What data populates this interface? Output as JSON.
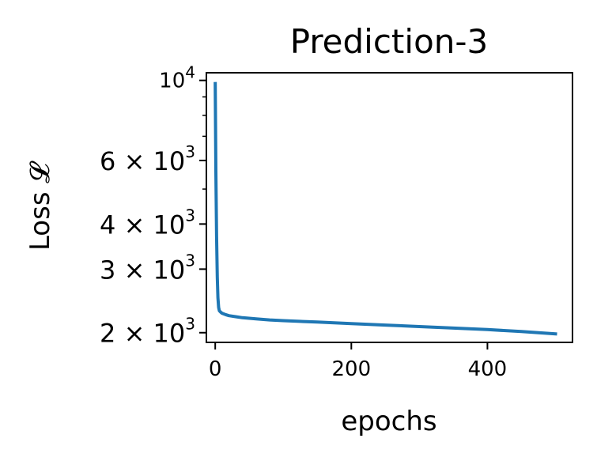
{
  "chart_data": {
    "type": "line",
    "title": "Prediction-3",
    "xlabel": "epochs",
    "ylabel": "Loss 𝓛",
    "xlim": [
      -13,
      525
    ],
    "ylim": [
      1880,
      10500
    ],
    "yscale": "log",
    "grid": false,
    "x_ticks": [
      {
        "value": 0,
        "label": "0"
      },
      {
        "value": 200,
        "label": "200"
      },
      {
        "value": 400,
        "label": "400"
      }
    ],
    "y_ticks": [
      {
        "value": 2000,
        "label": "2 × 10",
        "exp": "3"
      },
      {
        "value": 3000,
        "label": "3 × 10",
        "exp": "3"
      },
      {
        "value": 4000,
        "label": "4 × 10",
        "exp": "3"
      },
      {
        "value": 6000,
        "label": "6 × 10",
        "exp": "3"
      },
      {
        "value": 10000,
        "label": "10",
        "exp": "4"
      }
    ],
    "y_minor_ticks": [
      5000,
      7000,
      8000,
      9000
    ],
    "series": [
      {
        "color": "#1f77b4",
        "x": [
          0,
          1,
          2,
          3,
          4,
          5,
          6,
          8,
          10,
          15,
          20,
          30,
          40,
          60,
          80,
          100,
          150,
          200,
          250,
          300,
          350,
          400,
          450,
          500
        ],
        "y": [
          9800,
          5600,
          3700,
          2850,
          2500,
          2350,
          2300,
          2280,
          2265,
          2245,
          2230,
          2215,
          2200,
          2185,
          2170,
          2160,
          2140,
          2120,
          2100,
          2080,
          2060,
          2040,
          2015,
          1985
        ]
      }
    ]
  }
}
